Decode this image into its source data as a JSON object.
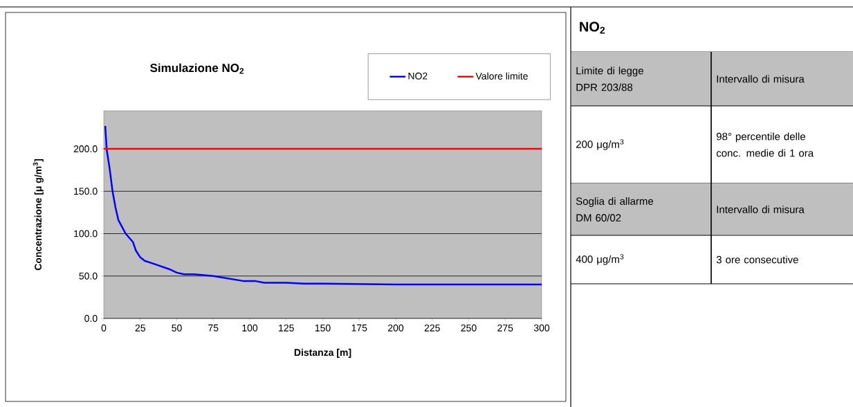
{
  "chart_data": [
    {
      "type": "line",
      "title": "Simulazione NO$_{2}$",
      "xlabel": "Distanza [m]",
      "ylabel": "Concentrazione [μ g/m$^{3}$]",
      "xlim": [
        0,
        300
      ],
      "ylim": [
        0,
        245
      ],
      "xticks": [
        0,
        25,
        50,
        75,
        100,
        125,
        150,
        175,
        200,
        225,
        250,
        275,
        300
      ],
      "yticks": [
        {
          "value": 0,
          "label": "0.0"
        },
        {
          "value": 50,
          "label": "50.0"
        },
        {
          "value": 100,
          "label": "100.0"
        },
        {
          "value": 150,
          "label": "150.0"
        },
        {
          "value": 200,
          "label": "200.0"
        }
      ],
      "grid": "y",
      "legend": "top right",
      "series": [
        {
          "name": "NO2",
          "color": "#0000ff",
          "x": [
            1,
            2,
            4,
            6,
            8,
            10,
            15,
            20,
            22,
            25,
            28,
            35,
            45,
            50,
            55,
            62,
            75,
            96,
            104,
            110,
            125,
            137,
            150,
            200,
            250,
            300
          ],
          "values": [
            227,
            199,
            177,
            150,
            131,
            116,
            100,
            90,
            80,
            72,
            68,
            64,
            58,
            54,
            52,
            52,
            50,
            44,
            44,
            42,
            42,
            41,
            41,
            40,
            40,
            40
          ]
        },
        {
          "name": "Valore limite",
          "color": "#ff0000",
          "x": [
            0,
            300
          ],
          "values": [
            200,
            200
          ]
        }
      ]
    },
    {
      "type": "other",
      "title": "NO$_{2}$",
      "annotations": [
        "Limite di legge DPR 203/88",
        "Intervallo di misura",
        "200 μg/m$^{3}$",
        "98° percentile delle conc. medie di 1 ora",
        "Soglia di allarme DM 60/02",
        "Intervallo di misura",
        "400 μg/m$^{3}$",
        "3 ore consecutive"
      ]
    }
  ]
}
